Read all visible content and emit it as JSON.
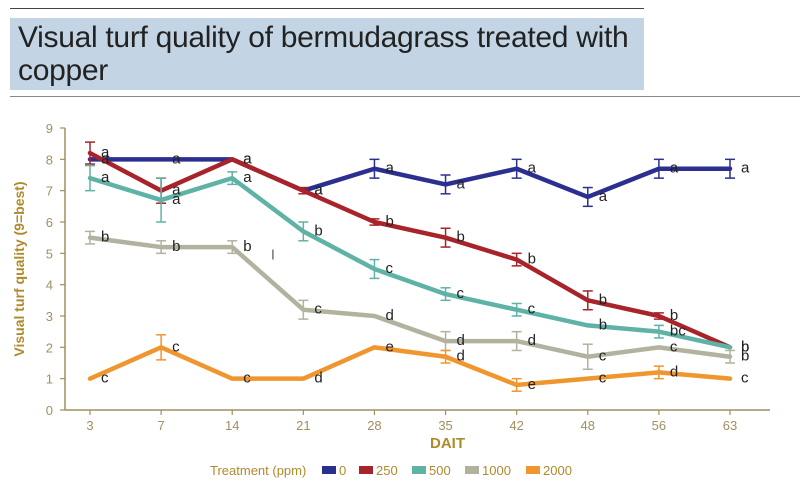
{
  "chart_data": {
    "type": "line",
    "title": "Visual turf quality of bermudagrass treated with copper",
    "xlabel": "DAIT",
    "ylabel": "Visual turf quality (9=best)",
    "ylim": [
      0,
      9
    ],
    "yticks": [
      0,
      1,
      2,
      3,
      4,
      5,
      6,
      7,
      8,
      9
    ],
    "categories": [
      "3",
      "7",
      "14",
      "21",
      "28",
      "35",
      "42",
      "48",
      "56",
      "63"
    ],
    "legend_title": "Treatment (ppm)",
    "legend_position": "bottom",
    "grid": false,
    "series": [
      {
        "name": "0",
        "color": "#2b2f8f",
        "values": [
          8,
          8,
          8,
          7,
          7.7,
          7.2,
          7.7,
          6.8,
          7.7,
          7.7
        ],
        "errors": [
          0,
          0,
          0,
          0,
          0.3,
          0.3,
          0.3,
          0.3,
          0.3,
          0.3
        ],
        "labels": [
          "a",
          "a",
          "a",
          "a",
          "a",
          "a",
          "a",
          "a",
          "a",
          "a"
        ]
      },
      {
        "name": "250",
        "color": "#a8232a",
        "values": [
          8.2,
          7,
          8,
          7,
          6,
          5.5,
          4.8,
          3.5,
          3,
          2
        ],
        "errors": [
          0.35,
          0.4,
          0,
          0.1,
          0.1,
          0.3,
          0.2,
          0.3,
          0.1,
          0
        ],
        "labels": [
          "a",
          "a",
          "a",
          "a",
          "b",
          "b",
          "b",
          "b",
          "b",
          "b"
        ]
      },
      {
        "name": "500",
        "color": "#5fb3a6",
        "values": [
          7.4,
          6.7,
          7.4,
          5.7,
          4.5,
          3.7,
          3.2,
          2.7,
          2.5,
          2
        ],
        "errors": [
          0.4,
          0.7,
          0.2,
          0.3,
          0.3,
          0.2,
          0.2,
          0,
          0.2,
          0
        ],
        "labels": [
          "a",
          "a",
          "a",
          "b",
          "c",
          "c",
          "c",
          "b",
          "bc",
          "b"
        ]
      },
      {
        "name": "1000",
        "color": "#b3b29f",
        "values": [
          5.5,
          5.2,
          5.2,
          3.2,
          3,
          2.2,
          2.2,
          1.7,
          2,
          1.7
        ],
        "errors": [
          0.2,
          0.2,
          0.2,
          0.3,
          0,
          0.3,
          0.3,
          0.4,
          0,
          0.2
        ],
        "labels": [
          "b",
          "b",
          "b",
          "c",
          "d",
          "d",
          "d",
          "c",
          "c",
          "b"
        ]
      },
      {
        "name": "2000",
        "color": "#f0962e",
        "values": [
          1,
          2,
          1,
          1,
          2,
          1.7,
          0.8,
          1,
          1.2,
          1
        ],
        "errors": [
          0,
          0.4,
          0,
          0,
          0,
          0.2,
          0.2,
          0,
          0.2,
          0
        ],
        "labels": [
          "c",
          "c",
          "c",
          "d",
          "e",
          "d",
          "e",
          "c",
          "d",
          "c"
        ]
      }
    ],
    "annotations": [
      "l"
    ]
  }
}
